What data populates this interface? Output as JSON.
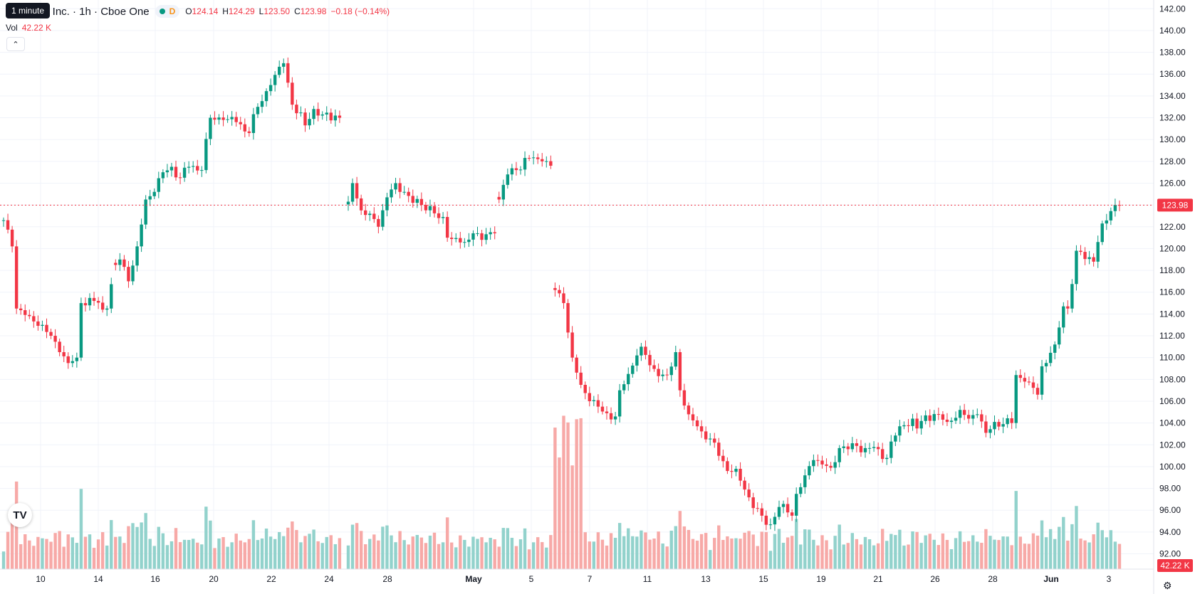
{
  "legend": {
    "title": "y Inc. · 1h · Cboe One",
    "tooltip": "1 minute",
    "d_marker": "D",
    "o_label": "O",
    "o_value": "124.14",
    "h_label": "H",
    "h_value": "124.29",
    "l_label": "L",
    "l_value": "123.50",
    "c_label": "C",
    "c_value": "123.98",
    "change": "−0.18 (−0.14%)",
    "vol_label": "Vol",
    "vol_value": "42.22 K"
  },
  "icons": {
    "collapse": "chevron-up-icon",
    "logo": "tradingview-logo-icon",
    "settings": "gear-icon"
  },
  "logo_text": "TV",
  "colors": {
    "up": "#089981",
    "down": "#f23645",
    "up_vol": "#92d2cc",
    "down_vol": "#f7a9a7",
    "last_line": "#f23645"
  },
  "chart_data": {
    "type": "candlestick",
    "ylim": [
      90.6,
      142.8
    ],
    "y_ticks": [
      "142.00",
      "140.00",
      "138.00",
      "136.00",
      "134.00",
      "132.00",
      "130.00",
      "128.00",
      "126.00",
      "124.00",
      "122.00",
      "120.00",
      "118.00",
      "116.00",
      "114.00",
      "112.00",
      "110.00",
      "108.00",
      "106.00",
      "104.00",
      "102.00",
      "100.00",
      "98.00",
      "96.00",
      "94.00",
      "92.00"
    ],
    "x_ticks": [
      "10",
      "14",
      "16",
      "20",
      "22",
      "24",
      "28",
      "May",
      "5",
      "7",
      "11",
      "13",
      "15",
      "19",
      "21",
      "26",
      "28",
      "Jun",
      "3"
    ],
    "last_price": "123.98",
    "last_volume": "42.22 K",
    "volume_max_k": 130,
    "anchors": [
      [
        0,
        122.6
      ],
      [
        2,
        120.2
      ],
      [
        3,
        114.5
      ],
      [
        6,
        113.8
      ],
      [
        9,
        113
      ],
      [
        11,
        112
      ],
      [
        13,
        110.5
      ],
      [
        15,
        109.5
      ],
      [
        17,
        110
      ],
      [
        18,
        115
      ],
      [
        21,
        115.2
      ],
      [
        23,
        114.4
      ],
      [
        24,
        114.5
      ],
      [
        26,
        118.5
      ],
      [
        27,
        119
      ],
      [
        29,
        117
      ],
      [
        31,
        120.2
      ],
      [
        33,
        124.5
      ],
      [
        35,
        125.2
      ],
      [
        37,
        127
      ],
      [
        39,
        127.5
      ],
      [
        41,
        126.5
      ],
      [
        43,
        127.5
      ],
      [
        46,
        127.2
      ],
      [
        48,
        132
      ],
      [
        51,
        131.8
      ],
      [
        54,
        131.6
      ],
      [
        57,
        130.6
      ],
      [
        59,
        133
      ],
      [
        62,
        135
      ],
      [
        65,
        137
      ],
      [
        67,
        133.2
      ],
      [
        70,
        131.3
      ],
      [
        72,
        132.8
      ],
      [
        74,
        132.3
      ],
      [
        78,
        132
      ],
      [
        80,
        124.3
      ],
      [
        81,
        126
      ],
      [
        83,
        123.5
      ],
      [
        85,
        123.2
      ],
      [
        87,
        122
      ],
      [
        89,
        124.7
      ],
      [
        91,
        126
      ],
      [
        93,
        125.2
      ],
      [
        95,
        124.2
      ],
      [
        97,
        124
      ],
      [
        99,
        123.9
      ],
      [
        101,
        122.8
      ],
      [
        102,
        122.9
      ],
      [
        103,
        121
      ],
      [
        107,
        120.6
      ],
      [
        109,
        121.4
      ],
      [
        111,
        120.8
      ],
      [
        113,
        121.5
      ],
      [
        114,
        121.4
      ],
      [
        115,
        124.5
      ],
      [
        117,
        126.8
      ],
      [
        119,
        127.2
      ],
      [
        122,
        128.3
      ],
      [
        125,
        128
      ],
      [
        127,
        127.6
      ],
      [
        128,
        116.2
      ],
      [
        130,
        115
      ],
      [
        132,
        110
      ],
      [
        134,
        107.5
      ],
      [
        136,
        106
      ],
      [
        138,
        105.5
      ],
      [
        140,
        104.9
      ],
      [
        142,
        104.6
      ],
      [
        143,
        107
      ],
      [
        145,
        108.5
      ],
      [
        147,
        110.2
      ],
      [
        148,
        111
      ],
      [
        150,
        109.3
      ],
      [
        152,
        108.3
      ],
      [
        154,
        108.4
      ],
      [
        156,
        110.5
      ],
      [
        157,
        107
      ],
      [
        159,
        104.8
      ],
      [
        161,
        103.7
      ],
      [
        163,
        102.5
      ],
      [
        165,
        102.2
      ],
      [
        167,
        100.5
      ],
      [
        168,
        99.6
      ],
      [
        170,
        99.8
      ],
      [
        172,
        97.9
      ],
      [
        174,
        96.2
      ],
      [
        176,
        95.5
      ],
      [
        178,
        94.7
      ],
      [
        180,
        96.3
      ],
      [
        182,
        95.8
      ],
      [
        183,
        95.5
      ],
      [
        184,
        97.5
      ],
      [
        186,
        99.2
      ],
      [
        188,
        100.6
      ],
      [
        190,
        100.2
      ],
      [
        192,
        99.9
      ],
      [
        194,
        101.7
      ],
      [
        196,
        101.6
      ],
      [
        198,
        101.9
      ],
      [
        200,
        101.7
      ],
      [
        202,
        101.8
      ],
      [
        204,
        100.7
      ],
      [
        205,
        100.8
      ],
      [
        206,
        102.3
      ],
      [
        208,
        103.7
      ],
      [
        211,
        104.4
      ],
      [
        212,
        103.5
      ],
      [
        214,
        104.7
      ],
      [
        217,
        104.8
      ],
      [
        219,
        104.1
      ],
      [
        222,
        105.2
      ],
      [
        224,
        104.4
      ],
      [
        226,
        104.8
      ],
      [
        228,
        103.1
      ],
      [
        230,
        104.1
      ],
      [
        232,
        103.9
      ],
      [
        234,
        104
      ],
      [
        235,
        108.4
      ],
      [
        237,
        107.8
      ],
      [
        240,
        106.6
      ],
      [
        241,
        109.2
      ],
      [
        244,
        111.2
      ],
      [
        246,
        114.7
      ],
      [
        247,
        114.5
      ],
      [
        249,
        119.8
      ],
      [
        253,
        118.8
      ],
      [
        255,
        122.3
      ],
      [
        258,
        124
      ],
      [
        259,
        123.98
      ]
    ],
    "segments": [
      [
        0,
        25
      ],
      [
        26,
        78
      ],
      [
        80,
        114
      ],
      [
        115,
        127
      ],
      [
        128,
        259
      ]
    ]
  }
}
